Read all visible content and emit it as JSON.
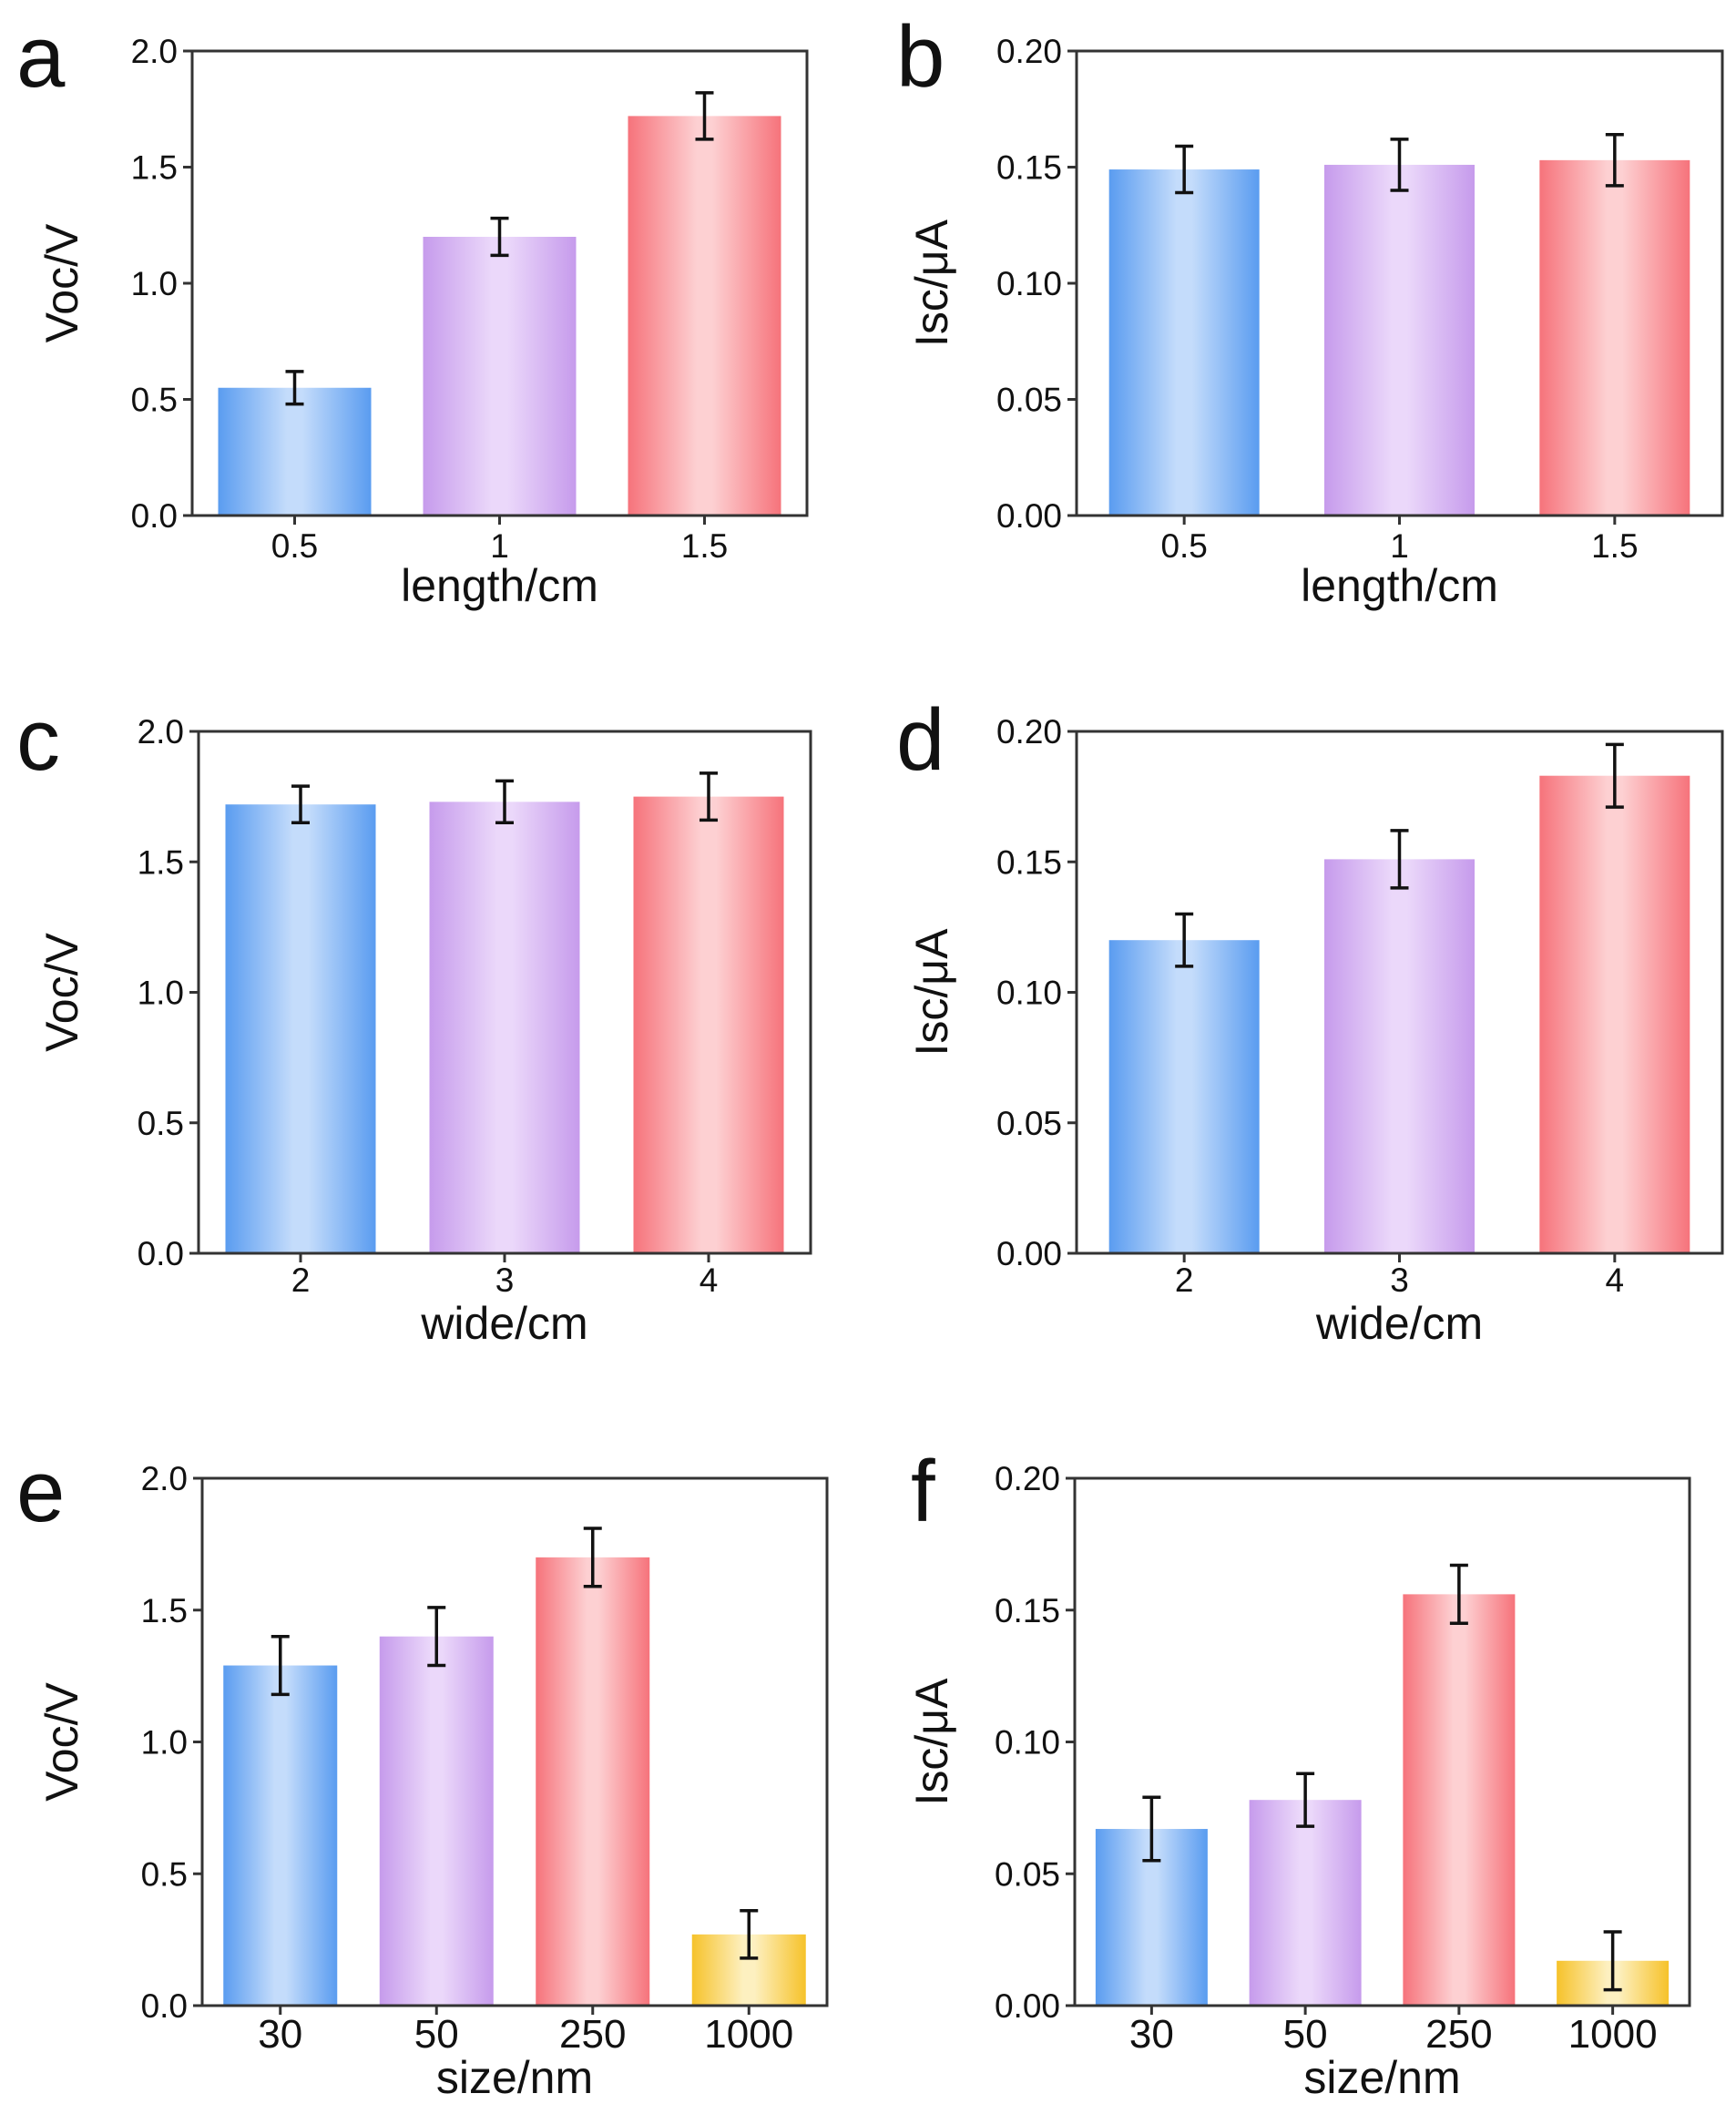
{
  "chart_data": [
    {
      "type": "bar",
      "panel": "a",
      "categories": [
        "0.5",
        "1",
        "1.5"
      ],
      "values": [
        0.55,
        1.2,
        1.72
      ],
      "errors": [
        0.07,
        0.08,
        0.1
      ],
      "colors": [
        "blue",
        "purple",
        "red"
      ],
      "xlabel": "length/cm",
      "ylabel": "Voc/V",
      "ylim": [
        0,
        2.0
      ],
      "yticks": [
        "0.0",
        "0.5",
        "1.0",
        "1.5",
        "2.0"
      ]
    },
    {
      "type": "bar",
      "panel": "b",
      "categories": [
        "0.5",
        "1",
        "1.5"
      ],
      "values": [
        0.149,
        0.151,
        0.153
      ],
      "errors": [
        0.01,
        0.011,
        0.011
      ],
      "colors": [
        "blue",
        "purple",
        "red"
      ],
      "xlabel": "length/cm",
      "ylabel": "Isc/μA",
      "ylim": [
        0,
        0.2
      ],
      "yticks": [
        "0.00",
        "0.05",
        "0.10",
        "0.15",
        "0.20"
      ]
    },
    {
      "type": "bar",
      "panel": "c",
      "categories": [
        "2",
        "3",
        "4"
      ],
      "values": [
        1.72,
        1.73,
        1.75
      ],
      "errors": [
        0.07,
        0.08,
        0.09
      ],
      "colors": [
        "blue",
        "purple",
        "red"
      ],
      "xlabel": "wide/cm",
      "ylabel": "Voc/V",
      "ylim": [
        0,
        2.0
      ],
      "yticks": [
        "0.0",
        "0.5",
        "1.0",
        "1.5",
        "2.0"
      ]
    },
    {
      "type": "bar",
      "panel": "d",
      "categories": [
        "2",
        "3",
        "4"
      ],
      "values": [
        0.12,
        0.151,
        0.183
      ],
      "errors": [
        0.01,
        0.011,
        0.012
      ],
      "colors": [
        "blue",
        "purple",
        "red"
      ],
      "xlabel": "wide/cm",
      "ylabel": "Isc/μA",
      "ylim": [
        0,
        0.2
      ],
      "yticks": [
        "0.00",
        "0.05",
        "0.10",
        "0.15",
        "0.20"
      ]
    },
    {
      "type": "bar",
      "panel": "e",
      "categories": [
        "30",
        "50",
        "250",
        "1000"
      ],
      "values": [
        1.29,
        1.4,
        1.7,
        0.27
      ],
      "errors": [
        0.11,
        0.11,
        0.11,
        0.09
      ],
      "colors": [
        "blue",
        "purple",
        "red",
        "yellow"
      ],
      "xlabel": "size/nm",
      "ylabel": "Voc/V",
      "ylim": [
        0,
        2.0
      ],
      "yticks": [
        "0.0",
        "0.5",
        "1.0",
        "1.5",
        "2.0"
      ]
    },
    {
      "type": "bar",
      "panel": "f",
      "categories": [
        "30",
        "50",
        "250",
        "1000"
      ],
      "values": [
        0.067,
        0.078,
        0.156,
        0.017
      ],
      "errors": [
        0.012,
        0.01,
        0.011,
        0.011
      ],
      "colors": [
        "blue",
        "purple",
        "red",
        "yellow"
      ],
      "xlabel": "size/nm",
      "ylabel": "Isc/μA",
      "ylim": [
        0,
        0.2
      ],
      "yticks": [
        "0.00",
        "0.05",
        "0.10",
        "0.15",
        "0.20"
      ]
    }
  ],
  "palette": {
    "blue": [
      "#5a9cf0",
      "#c4dcfb"
    ],
    "purple": [
      "#c69bec",
      "#ebd8fa"
    ],
    "red": [
      "#f6737b",
      "#fdd0d2"
    ],
    "yellow": [
      "#f6c22a",
      "#fdf0c0"
    ]
  }
}
